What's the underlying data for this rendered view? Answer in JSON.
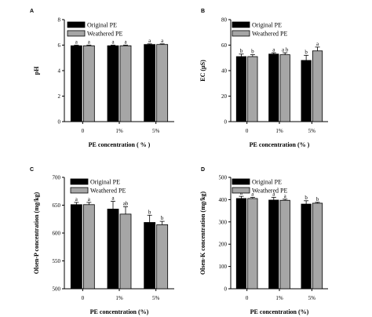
{
  "legend": {
    "series": [
      {
        "name": "Original PE",
        "color": "#000000"
      },
      {
        "name": "Weathered PE",
        "color": "#a6a6a6"
      }
    ]
  },
  "chart_data": [
    {
      "panel": "A",
      "type": "bar",
      "categories": [
        "0",
        "1%",
        "5%"
      ],
      "xlabel": "PE concentration ( % )",
      "ylabel": "pH",
      "ylim": [
        0,
        8
      ],
      "yticks": [
        "0",
        "2",
        "4",
        "6",
        "8"
      ],
      "series": [
        {
          "name": "Original PE",
          "values": [
            5.95,
            5.95,
            6.05
          ],
          "errors": [
            0.05,
            0.05,
            0.05
          ],
          "letters": [
            "a",
            "a",
            "a"
          ]
        },
        {
          "name": "Weathered PE",
          "values": [
            5.95,
            5.95,
            6.05
          ],
          "errors": [
            0.05,
            0.05,
            0.05
          ],
          "letters": [
            "a",
            "a",
            "a"
          ]
        }
      ]
    },
    {
      "panel": "B",
      "type": "bar",
      "categories": [
        "0",
        "1%",
        "5%"
      ],
      "xlabel": "PE concentration (% )",
      "ylabel": "EC (µS)",
      "ylim": [
        0,
        80
      ],
      "yticks": [
        "0",
        "20",
        "40",
        "60",
        "80"
      ],
      "series": [
        {
          "name": "Original PE",
          "values": [
            51,
            53,
            48
          ],
          "errors": [
            2,
            1,
            4
          ],
          "letters": [
            "b",
            "a",
            "b"
          ]
        },
        {
          "name": "Weathered PE",
          "values": [
            51,
            52.5,
            55.5
          ],
          "errors": [
            1.5,
            1.5,
            3
          ],
          "letters": [
            "b",
            "a b",
            "a"
          ]
        }
      ]
    },
    {
      "panel": "C",
      "type": "bar",
      "categories": [
        "0",
        "1%",
        "5%"
      ],
      "xlabel": "PE concentration (%)",
      "ylabel": "Olsen-P concentration (mg/kg)",
      "ylim": [
        500,
        700
      ],
      "yticks": [
        "500",
        "550",
        "600",
        "650",
        "700"
      ],
      "series": [
        {
          "name": "Original PE",
          "values": [
            651,
            643,
            619
          ],
          "errors": [
            4,
            14,
            13
          ],
          "letters": [
            "a",
            "a",
            "b"
          ]
        },
        {
          "name": "Weathered PE",
          "values": [
            651,
            634,
            615
          ],
          "errors": [
            4,
            13,
            6
          ],
          "letters": [
            "a",
            "ab",
            "b"
          ]
        }
      ]
    },
    {
      "panel": "D",
      "type": "bar",
      "categories": [
        "0",
        "1%",
        "5%"
      ],
      "xlabel": "PE concentration (%)",
      "ylabel": "Olsen-K concentration (mg/kg)",
      "ylim": [
        0,
        500
      ],
      "yticks": [
        "0",
        "100",
        "200",
        "300",
        "400",
        "500"
      ],
      "series": [
        {
          "name": "Original PE",
          "values": [
            405,
            398,
            380
          ],
          "errors": [
            10,
            12,
            15
          ],
          "letters": [
            "a",
            "a",
            "b"
          ]
        },
        {
          "name": "Weathered PE",
          "values": [
            405,
            397,
            384
          ],
          "errors": [
            5,
            5,
            4
          ],
          "letters": [
            "a",
            "a",
            "b"
          ]
        }
      ]
    }
  ]
}
